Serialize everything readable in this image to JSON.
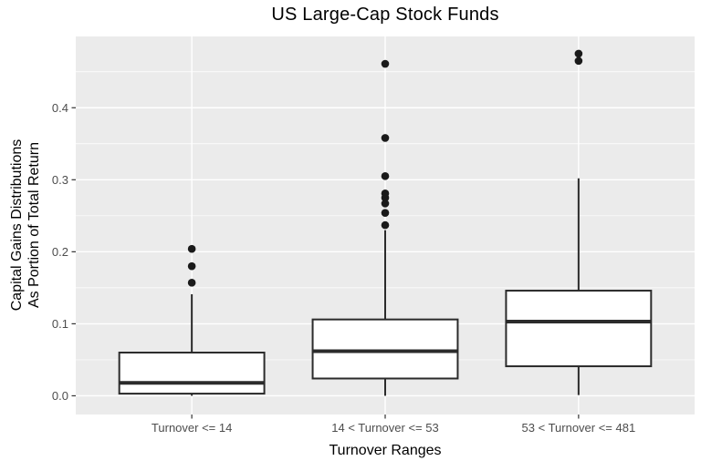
{
  "chart_data": {
    "type": "boxplot",
    "title": "US Large-Cap Stock Funds",
    "xlabel": "Turnover Ranges",
    "ylabel_lines": [
      "Capital Gains Distributions",
      "As Portion of Total Return"
    ],
    "categories": [
      "Turnover <= 14",
      "14 < Turnover <= 53",
      "53 < Turnover <= 481"
    ],
    "series": [
      {
        "label": "Turnover <= 14",
        "low": 0.0,
        "q1": 0.003,
        "median": 0.018,
        "q3": 0.06,
        "high": 0.141,
        "outliers": [
          0.157,
          0.18,
          0.204
        ]
      },
      {
        "label": "14 < Turnover <= 53",
        "low": 0.0,
        "q1": 0.024,
        "median": 0.062,
        "q3": 0.106,
        "high": 0.23,
        "outliers": [
          0.237,
          0.254,
          0.267,
          0.275,
          0.281,
          0.305,
          0.358,
          0.461
        ]
      },
      {
        "label": "53 < Turnover <= 481",
        "low": 0.001,
        "q1": 0.041,
        "median": 0.103,
        "q3": 0.146,
        "high": 0.302,
        "outliers": [
          0.465,
          0.475
        ]
      }
    ],
    "y_axis": {
      "tick_values": [
        0.0,
        0.1,
        0.2,
        0.3,
        0.4
      ],
      "tick_labels": [
        "0.0",
        "0.1",
        "0.2",
        "0.3",
        "0.4"
      ],
      "minor_tick_values": [
        0.05,
        0.15,
        0.25,
        0.35,
        0.45
      ],
      "ylim": [
        -0.026,
        0.499
      ]
    },
    "grid": true,
    "legend": "none",
    "colors": {
      "panel_background": "#EBEBEB",
      "grid_major": "#FFFFFF",
      "grid_minor": "#FFFFFF",
      "box_fill": "#FFFFFF",
      "box_stroke": "#2B2B2B",
      "median_stroke": "#2B2B2B",
      "outlier_fill": "#1A1A1A",
      "tick_mark": "#333333",
      "tick_label": "#4D4D4D",
      "title_text": "#000000"
    }
  }
}
